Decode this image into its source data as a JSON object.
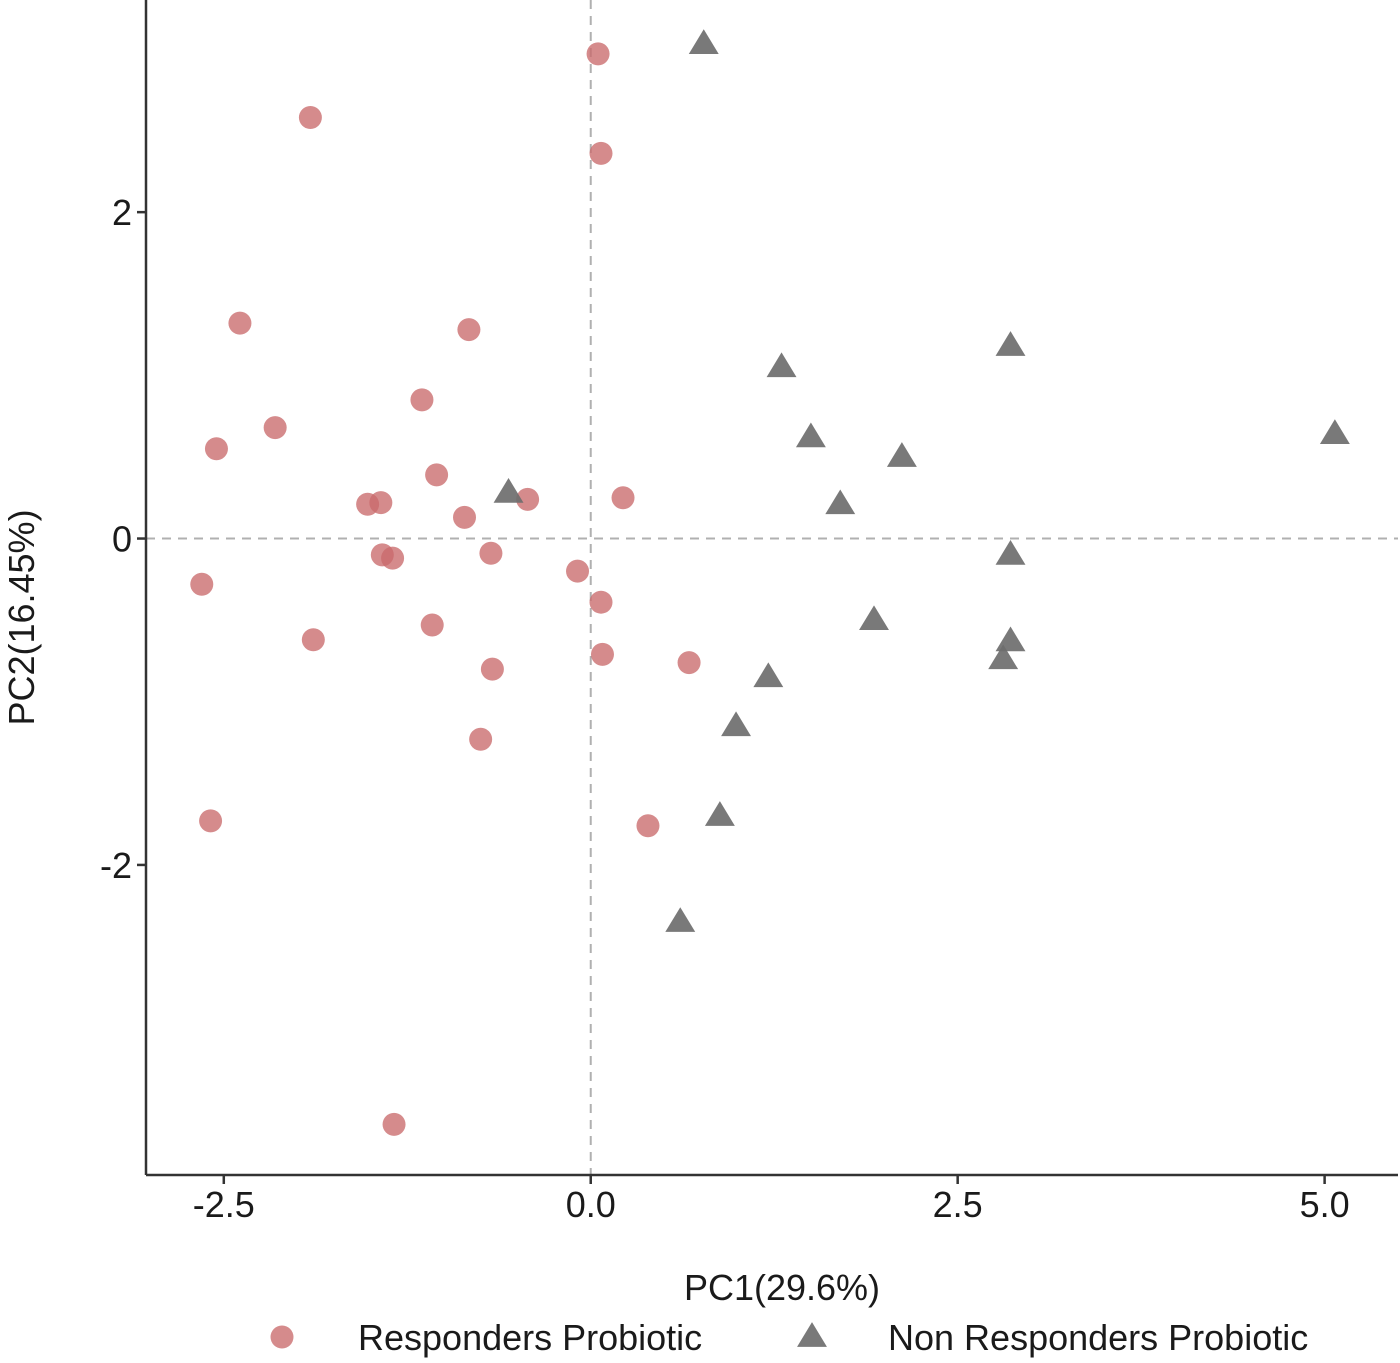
{
  "chart_data": {
    "type": "scatter",
    "xlabel": "PC1(29.6%)",
    "ylabel": "PC2(16.45%)",
    "xlim": [
      -3.03,
      5.5
    ],
    "ylim": [
      -3.9,
      3.3
    ],
    "x_ticks": [
      -2.5,
      0.0,
      2.5,
      5.0
    ],
    "x_tick_labels": [
      "-2.5",
      "0.0",
      "2.5",
      "5.0"
    ],
    "y_ticks": [
      -2,
      0,
      2
    ],
    "y_tick_labels": [
      "-2",
      "0",
      "2"
    ],
    "reference_lines": {
      "x": 0,
      "y": 0,
      "style": "dashed"
    },
    "grid": false,
    "legend_position": "bottom",
    "series": [
      {
        "name": "Responders Probiotic",
        "marker": "circle",
        "color": "#c96a6c",
        "points": [
          [
            0.05,
            2.97
          ],
          [
            -1.91,
            2.58
          ],
          [
            0.07,
            2.36
          ],
          [
            -2.39,
            1.32
          ],
          [
            -0.83,
            1.28
          ],
          [
            -1.15,
            0.85
          ],
          [
            -2.15,
            0.68
          ],
          [
            -2.55,
            0.55
          ],
          [
            -1.05,
            0.39
          ],
          [
            -1.52,
            0.21
          ],
          [
            -1.43,
            0.22
          ],
          [
            -0.43,
            0.24
          ],
          [
            0.22,
            0.25
          ],
          [
            -0.86,
            0.13
          ],
          [
            -1.42,
            -0.1
          ],
          [
            -1.35,
            -0.12
          ],
          [
            -0.68,
            -0.09
          ],
          [
            -0.09,
            -0.2
          ],
          [
            -2.65,
            -0.28
          ],
          [
            0.07,
            -0.39
          ],
          [
            -1.08,
            -0.53
          ],
          [
            -1.89,
            -0.62
          ],
          [
            0.08,
            -0.71
          ],
          [
            -0.67,
            -0.8
          ],
          [
            0.67,
            -0.76
          ],
          [
            -0.75,
            -1.23
          ],
          [
            -2.59,
            -1.73
          ],
          [
            0.39,
            -1.76
          ],
          [
            -1.34,
            -3.59
          ]
        ]
      },
      {
        "name": "Non Responders Probiotic",
        "marker": "triangle",
        "color": "#6e6e6e",
        "points": [
          [
            0.77,
            3.03
          ],
          [
            1.3,
            1.05
          ],
          [
            2.86,
            1.18
          ],
          [
            1.5,
            0.62
          ],
          [
            2.12,
            0.5
          ],
          [
            5.07,
            0.64
          ],
          [
            -0.56,
            0.28
          ],
          [
            1.7,
            0.21
          ],
          [
            2.86,
            -0.1
          ],
          [
            1.93,
            -0.5
          ],
          [
            2.86,
            -0.63
          ],
          [
            2.81,
            -0.74
          ],
          [
            1.21,
            -0.85
          ],
          [
            0.99,
            -1.15
          ],
          [
            0.88,
            -1.7
          ],
          [
            0.61,
            -2.35
          ]
        ]
      }
    ]
  }
}
